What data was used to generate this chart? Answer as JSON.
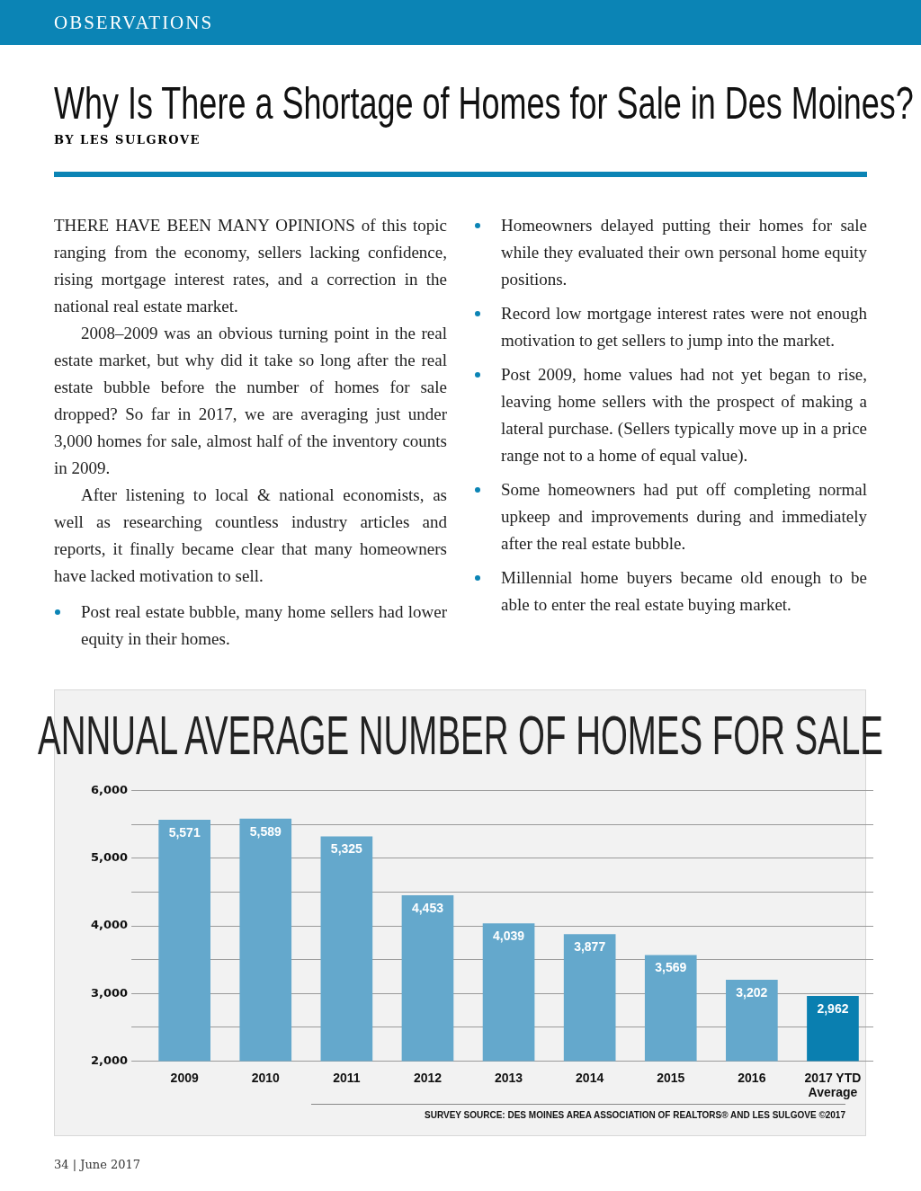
{
  "chart_data": {
    "type": "bar",
    "title": "ANNUAL AVERAGE NUMBER OF HOMES FOR SALE",
    "categories": [
      "2009",
      "2010",
      "2011",
      "2012",
      "2013",
      "2014",
      "2015",
      "2016",
      "2017 YTD Average"
    ],
    "values": [
      5571,
      5589,
      5325,
      4453,
      4039,
      3877,
      3569,
      3202,
      2962
    ],
    "colors": [
      "#64a8cc",
      "#64a8cc",
      "#64a8cc",
      "#64a8cc",
      "#64a8cc",
      "#64a8cc",
      "#64a8cc",
      "#64a8cc",
      "#0a7fb0"
    ],
    "ylim": [
      2000,
      6000
    ],
    "yticks": [
      {
        "value": 2000,
        "label": "2,000"
      },
      {
        "value": 2500,
        "label": null
      },
      {
        "value": 3000,
        "label": "3,000"
      },
      {
        "value": 3500,
        "label": null
      },
      {
        "value": 4000,
        "label": "4,000"
      },
      {
        "value": 4500,
        "label": null
      },
      {
        "value": 5000,
        "label": "5,000"
      },
      {
        "value": 5500,
        "label": null
      },
      {
        "value": 6000,
        "label": "6,000"
      }
    ],
    "value_labels": [
      "5,571",
      "5,589",
      "5,325",
      "4,453",
      "4,039",
      "3,877",
      "3,569",
      "3,202",
      "2,962"
    ],
    "grid": "y",
    "legend": false,
    "annotations": [
      "OBSERVATIONS",
      "Why Is There a Shortage of Homes for Sale in Des Moines?",
      "BY LES SULGROVE",
      "THERE HAVE BEEN MANY OPINIONS of this topic ranging from the economy, sellers lacking confidence, rising mortgage interest rates, and a correction in the national real estate market.",
      "2008–2009 was an obvious turning point in the real estate market, but why did it take so long after the real estate bubble before the number of homes for sale dropped? So far in 2017, we are averaging just under 3,000 homes for sale, almost half of the inventory counts in 2009.",
      "After listening to local & national economists, as well as researching countless industry articles and reports, it finally became clear that many homeowners have lacked motivation to sell.",
      "Post real estate bubble, many home sellers had lower equity in their homes.",
      "Homeowners delayed putting their homes for sale while they evaluated their own personal home equity positions.",
      "Record low mortgage interest rates were not enough motivation to get sellers to jump into the market.",
      "Post 2009, home values had not yet began to rise, leaving home sellers with the prospect of making a lateral purchase. (Sellers typically move up in a price range not to a home of equal value).",
      "Some homeowners had put off completing normal upkeep and improvements during and immediately after the real estate bubble.",
      "Millennial home buyers became old enough to be able to enter the real estate buying market.",
      "SURVEY SOURCE: DES MOINES AREA ASSOCIATION OF REALTORS® AND LES SULGOVE ©2017",
      "34 | June 2017"
    ]
  }
}
